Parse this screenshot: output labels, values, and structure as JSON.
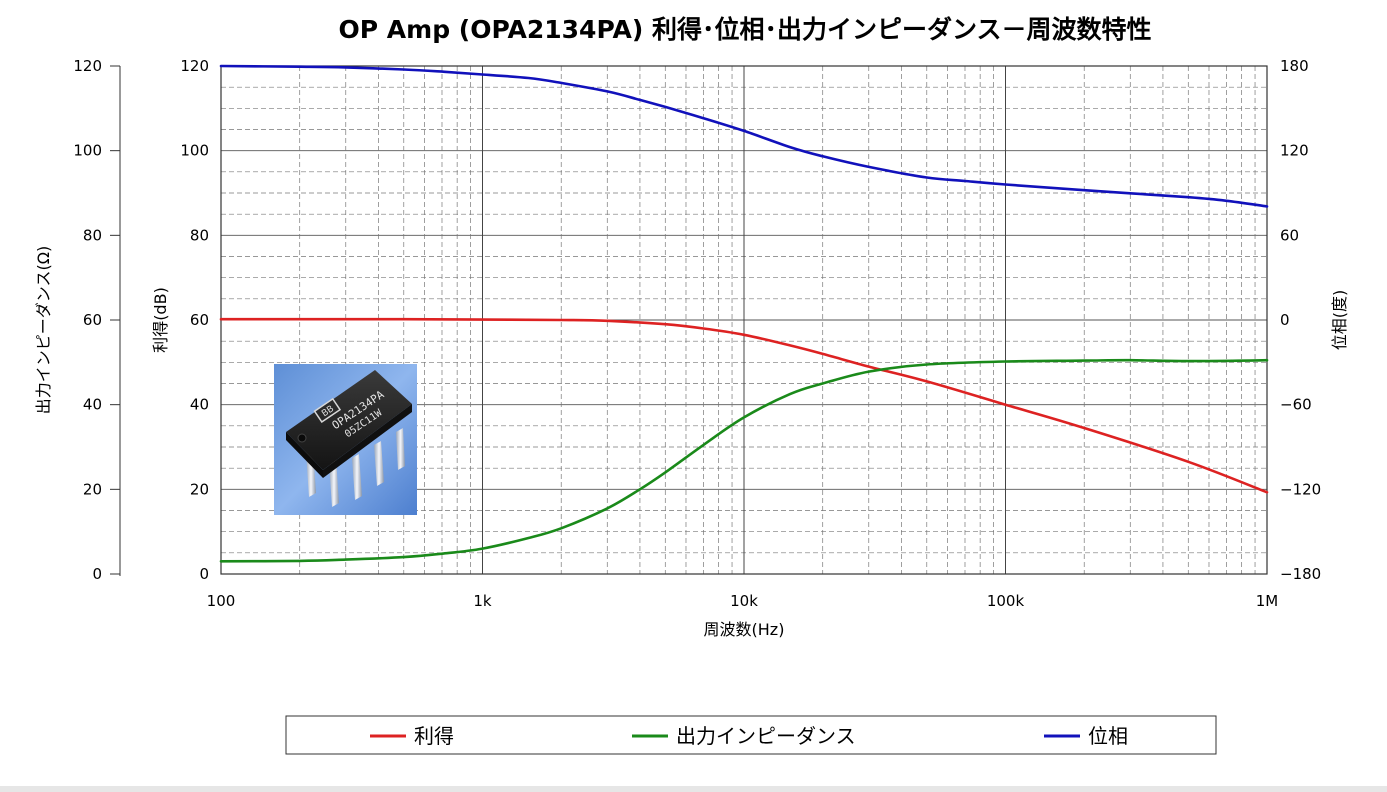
{
  "chart_data": {
    "type": "line",
    "title": "OP Amp (OPA2134PA) 利得･位相･出力インピーダンス－周波数特性",
    "xlabel": "周波数(Hz)",
    "x_scale": "log",
    "xlim": [
      100,
      1000000
    ],
    "x_ticks": [
      100,
      1000,
      10000,
      100000,
      1000000
    ],
    "x_tick_labels": [
      "100",
      "1k",
      "10k",
      "100k",
      "1M"
    ],
    "y_axes": {
      "outer_left": {
        "label": "出力インピーダンス(Ω)",
        "lim": [
          0,
          120
        ],
        "ticks": [
          "0",
          "20",
          "40",
          "60",
          "80",
          "100",
          "120"
        ]
      },
      "inner_left": {
        "label": "利得(dB)",
        "lim": [
          0,
          120
        ],
        "ticks": [
          "0",
          "20",
          "40",
          "60",
          "80",
          "100",
          "120"
        ]
      },
      "right": {
        "label": "位相(度)",
        "lim": [
          -180,
          180
        ],
        "ticks": [
          "−180",
          "−120",
          "−60",
          "0",
          "60",
          "120",
          "180"
        ]
      }
    },
    "grid": true,
    "legend_position": "bottom",
    "series": [
      {
        "name": "利得",
        "axis": "inner_left",
        "color": "#dd2222",
        "x": [
          100,
          200,
          500,
          1000,
          2000,
          3000,
          5000,
          7000,
          10000,
          15000,
          20000,
          30000,
          50000,
          100000,
          200000,
          500000,
          1000000
        ],
        "y": [
          60.2,
          60.2,
          60.2,
          60.1,
          60.0,
          59.8,
          59.0,
          58.0,
          56.5,
          54.0,
          52.0,
          49.0,
          45.5,
          40.0,
          34.5,
          26.5,
          19.3
        ]
      },
      {
        "name": "出力インピーダンス",
        "axis": "outer_left",
        "color": "#1a8a1a",
        "x": [
          100,
          200,
          300,
          500,
          700,
          1000,
          1500,
          2000,
          3000,
          4000,
          5000,
          7000,
          10000,
          15000,
          20000,
          30000,
          50000,
          100000,
          200000,
          300000,
          500000,
          1000000
        ],
        "y": [
          3.0,
          3.1,
          3.4,
          4.0,
          4.8,
          6.0,
          8.5,
          10.8,
          15.5,
          20.0,
          24.0,
          30.5,
          37.0,
          42.5,
          45.0,
          47.8,
          49.5,
          50.2,
          50.4,
          50.5,
          50.3,
          50.5
        ]
      },
      {
        "name": "位相",
        "axis": "right",
        "color": "#1111bb",
        "x": [
          100,
          200,
          300,
          500,
          700,
          1000,
          1500,
          2000,
          3000,
          4000,
          5000,
          7000,
          10000,
          15000,
          20000,
          30000,
          50000,
          70000,
          100000,
          200000,
          500000,
          700000,
          1000000
        ],
        "y": [
          180,
          179.5,
          179,
          177.5,
          176,
          174,
          171.5,
          168,
          162,
          156,
          151,
          143,
          134,
          122.5,
          116,
          108.5,
          101,
          98.5,
          96,
          92,
          87,
          84.5,
          80.5
        ]
      }
    ]
  },
  "legend": {
    "items": [
      {
        "label": "利得",
        "color": "#dd2222"
      },
      {
        "label": "出力インピーダンス",
        "color": "#1a8a1a"
      },
      {
        "label": "位相",
        "color": "#1111bb"
      }
    ]
  },
  "photo": {
    "chip_text_line1": "OPA2134PA",
    "chip_text_line2": "05ZC11W",
    "logo_text": "BB"
  }
}
